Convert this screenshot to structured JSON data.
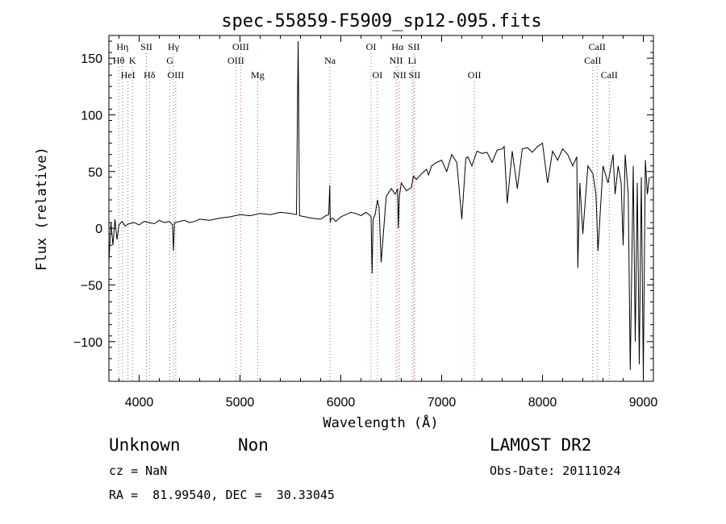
{
  "chart_data": {
    "type": "line",
    "title": "spec-55859-F5909_sp12-095.fits",
    "xlabel": "Wavelength (Å)",
    "ylabel": "Flux (relative)",
    "xlim": [
      3700,
      9100
    ],
    "ylim": [
      -135,
      170
    ],
    "xticks": [
      4000,
      5000,
      6000,
      7000,
      8000,
      9000
    ],
    "yticks": [
      -100,
      -50,
      0,
      50,
      100,
      150
    ],
    "grid": false,
    "legend": "none",
    "series": [
      {
        "x": [
          3700,
          3720,
          3740,
          3760,
          3780,
          3800,
          3830,
          3860,
          3900,
          3950,
          4000,
          4050,
          4100,
          4150,
          4200,
          4250,
          4300,
          4330,
          4340,
          4350,
          4400,
          4450,
          4500,
          4550,
          4600,
          4700,
          4800,
          4900,
          5000,
          5100,
          5200,
          5300,
          5400,
          5500,
          5560,
          5577,
          5590,
          5650,
          5700,
          5800,
          5850,
          5880,
          5890,
          5895,
          5900,
          5920,
          5950,
          6000,
          6050,
          6100,
          6150,
          6200,
          6250,
          6280,
          6300,
          6310,
          6320,
          6340,
          6363,
          6380,
          6400,
          6450,
          6500,
          6540,
          6563,
          6570,
          6580,
          6600,
          6650,
          6700,
          6720,
          6750,
          6800,
          6850,
          6870,
          6900,
          6950,
          7000,
          7050,
          7100,
          7150,
          7200,
          7240,
          7260,
          7300,
          7350,
          7400,
          7450,
          7500,
          7550,
          7600,
          7620,
          7650,
          7700,
          7750,
          7800,
          7850,
          7900,
          7950,
          8000,
          8050,
          8100,
          8150,
          8200,
          8250,
          8300,
          8340,
          8350,
          8370,
          8400,
          8450,
          8500,
          8530,
          8550,
          8600,
          8650,
          8700,
          8720,
          8750,
          8780,
          8800,
          8820,
          8850,
          8870,
          8900,
          8920,
          8940,
          8960,
          8980,
          9000,
          9020,
          9040,
          9060
        ],
        "y": [
          -30,
          5,
          -15,
          8,
          -10,
          3,
          6,
          2,
          4,
          5,
          3,
          6,
          5,
          4,
          7,
          5,
          6,
          3,
          -20,
          5,
          6,
          7,
          5,
          6,
          8,
          7,
          9,
          10,
          12,
          11,
          13,
          12,
          14,
          13,
          12,
          165,
          11,
          10,
          9,
          8,
          11,
          12,
          38,
          5,
          8,
          9,
          6,
          10,
          12,
          14,
          13,
          11,
          14,
          12,
          10,
          -40,
          8,
          12,
          25,
          18,
          -30,
          28,
          35,
          30,
          35,
          0,
          28,
          40,
          33,
          36,
          46,
          43,
          48,
          52,
          47,
          55,
          58,
          60,
          50,
          65,
          58,
          8,
          62,
          63,
          55,
          68,
          66,
          67,
          58,
          69,
          70,
          72,
          22,
          68,
          35,
          70,
          71,
          67,
          72,
          75,
          40,
          68,
          60,
          70,
          65,
          55,
          63,
          -35,
          40,
          -5,
          55,
          48,
          30,
          -20,
          55,
          40,
          65,
          30,
          55,
          40,
          -15,
          65,
          30,
          -125,
          55,
          -100,
          40,
          -120,
          45,
          -130,
          60,
          30,
          45
        ]
      }
    ],
    "lines": [
      {
        "label": "Hη",
        "x": 3835,
        "row": 1,
        "color": "#777777"
      },
      {
        "label": "Hθ",
        "x": 3797,
        "row": 2,
        "color": "#777777"
      },
      {
        "label": "K",
        "x": 3934,
        "row": 2,
        "color": "#777777"
      },
      {
        "label": "HeI",
        "x": 3889,
        "row": 3,
        "color": "#777777"
      },
      {
        "label": "SII",
        "x": 4072,
        "row": 1,
        "color": "#777777"
      },
      {
        "label": "Hδ",
        "x": 4102,
        "row": 3,
        "color": "#777777"
      },
      {
        "label": "Hγ",
        "x": 4340,
        "row": 1,
        "color": "#777777"
      },
      {
        "label": "G",
        "x": 4305,
        "row": 2,
        "color": "#777777"
      },
      {
        "label": "OIII",
        "x": 4363,
        "row": 3,
        "color": "#777777"
      },
      {
        "label": "OIII",
        "x": 5007,
        "row": 1,
        "color": "#cc6666"
      },
      {
        "label": "OIII",
        "x": 4959,
        "row": 2,
        "color": "#cc6666"
      },
      {
        "label": "Mg",
        "x": 5175,
        "row": 3,
        "color": "#777777"
      },
      {
        "label": "Na",
        "x": 5893,
        "row": 2,
        "color": "#777777"
      },
      {
        "label": "OI",
        "x": 6300,
        "row": 1,
        "color": "#cc6666"
      },
      {
        "label": "OI",
        "x": 6363,
        "row": 3,
        "color": "#cc6666"
      },
      {
        "label": "Hα",
        "x": 6563,
        "row": 1,
        "color": "#cc6666"
      },
      {
        "label": "SII",
        "x": 6724,
        "row": 1,
        "color": "#cc6666"
      },
      {
        "label": "NII",
        "x": 6548,
        "row": 2,
        "color": "#cc6666"
      },
      {
        "label": "Li",
        "x": 6708,
        "row": 2,
        "color": "#777777"
      },
      {
        "label": "NII",
        "x": 6583,
        "row": 3,
        "color": "#cc6666"
      },
      {
        "label": "SII",
        "x": 6731,
        "row": 3,
        "color": "#cc6666"
      },
      {
        "label": "OII",
        "x": 7325,
        "row": 3,
        "color": "#cc6666"
      },
      {
        "label": "CaII",
        "x": 8542,
        "row": 1,
        "color": "#777777"
      },
      {
        "label": "CaII",
        "x": 8498,
        "row": 2,
        "color": "#777777"
      },
      {
        "label": "CaII",
        "x": 8662,
        "row": 3,
        "color": "#777777"
      }
    ]
  },
  "info": {
    "object_class": "Unknown",
    "object_subclass": "Non",
    "survey": "LAMOST DR2",
    "cz": "cz = NaN",
    "obs_date": "Obs-Date: 20111024",
    "coords": "RA =  81.99540, DEC =  30.33045"
  }
}
